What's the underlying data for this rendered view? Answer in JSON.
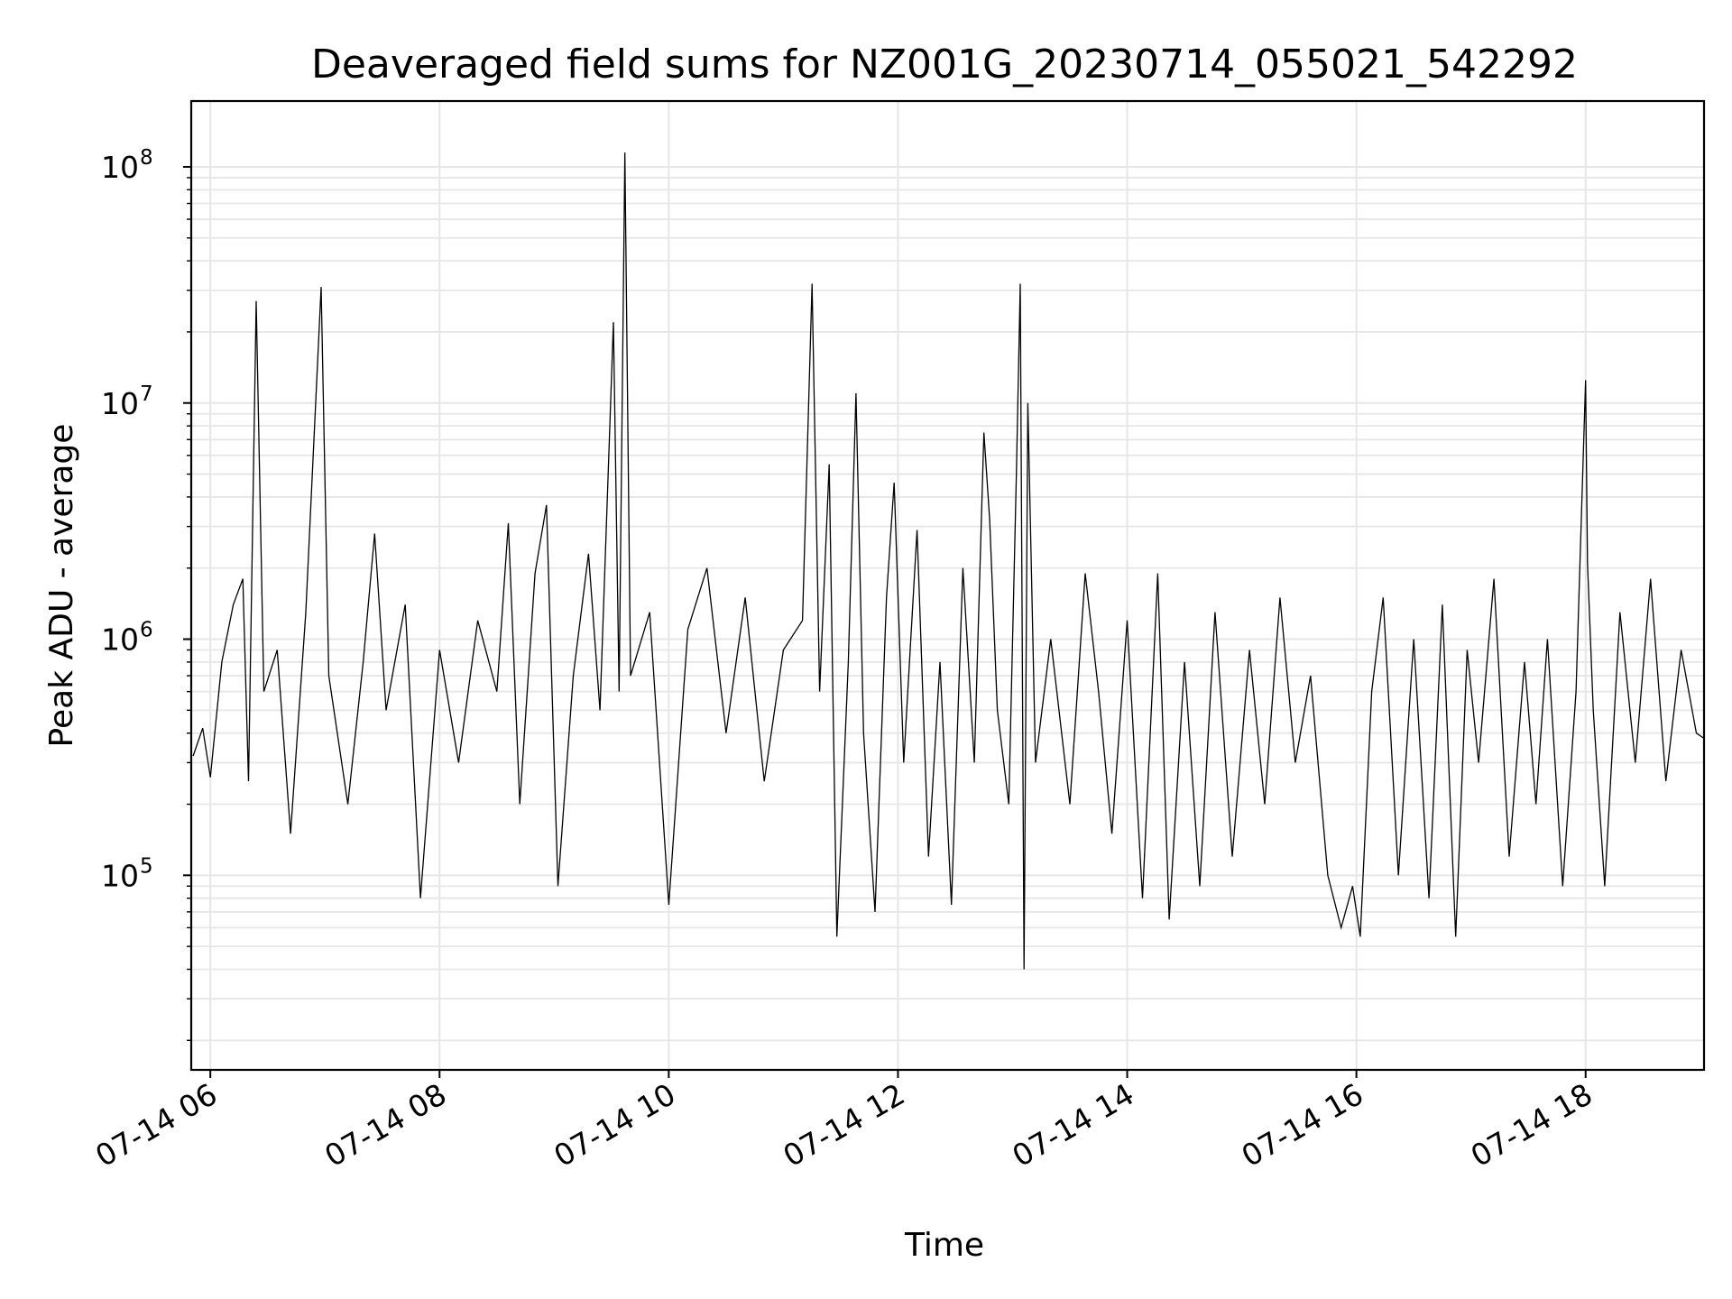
{
  "chart_data": {
    "type": "line",
    "title": "Deaveraged field sums for NZ001G_20230714_055021_542292",
    "xlabel": "Time",
    "ylabel": "Peak ADU - average",
    "x_axis": {
      "kind": "time",
      "range": [
        "2023-07-14 05:50",
        "2023-07-14 19:02"
      ],
      "ticks": [
        {
          "time": "2023-07-14 06:00",
          "label": "07-14 06"
        },
        {
          "time": "2023-07-14 08:00",
          "label": "07-14 08"
        },
        {
          "time": "2023-07-14 10:00",
          "label": "07-14 10"
        },
        {
          "time": "2023-07-14 12:00",
          "label": "07-14 12"
        },
        {
          "time": "2023-07-14 14:00",
          "label": "07-14 14"
        },
        {
          "time": "2023-07-14 16:00",
          "label": "07-14 16"
        },
        {
          "time": "2023-07-14 18:00",
          "label": "07-14 18"
        }
      ]
    },
    "y_axis": {
      "scale": "log",
      "range": [
        15000,
        190000000
      ],
      "ticks": [
        {
          "value": 100000,
          "base": "10",
          "exp": "5"
        },
        {
          "value": 1000000,
          "base": "10",
          "exp": "6"
        },
        {
          "value": 10000000,
          "base": "10",
          "exp": "7"
        },
        {
          "value": 100000000,
          "base": "10",
          "exp": "8"
        }
      ]
    },
    "grid": true,
    "series_color": "#000000",
    "grid_color": "#e6e6e6",
    "series": [
      {
        "points": [
          [
            "2023-07-14 05:51",
            320000
          ],
          [
            "2023-07-14 05:56",
            420000
          ],
          [
            "2023-07-14 06:00",
            260000
          ],
          [
            "2023-07-14 06:06",
            800000
          ],
          [
            "2023-07-14 06:12",
            1400000
          ],
          [
            "2023-07-14 06:17",
            1800000
          ],
          [
            "2023-07-14 06:20",
            250000
          ],
          [
            "2023-07-14 06:24",
            27000000
          ],
          [
            "2023-07-14 06:28",
            600000
          ],
          [
            "2023-07-14 06:35",
            900000
          ],
          [
            "2023-07-14 06:42",
            150000
          ],
          [
            "2023-07-14 06:50",
            1300000
          ],
          [
            "2023-07-14 06:58",
            31000000
          ],
          [
            "2023-07-14 07:02",
            700000
          ],
          [
            "2023-07-14 07:12",
            200000
          ],
          [
            "2023-07-14 07:20",
            800000
          ],
          [
            "2023-07-14 07:26",
            2800000
          ],
          [
            "2023-07-14 07:32",
            500000
          ],
          [
            "2023-07-14 07:42",
            1400000
          ],
          [
            "2023-07-14 07:50",
            80000
          ],
          [
            "2023-07-14 08:00",
            900000
          ],
          [
            "2023-07-14 08:10",
            300000
          ],
          [
            "2023-07-14 08:20",
            1200000
          ],
          [
            "2023-07-14 08:30",
            600000
          ],
          [
            "2023-07-14 08:36",
            3100000
          ],
          [
            "2023-07-14 08:42",
            200000
          ],
          [
            "2023-07-14 08:50",
            1900000
          ],
          [
            "2023-07-14 08:56",
            3700000
          ],
          [
            "2023-07-14 09:02",
            90000
          ],
          [
            "2023-07-14 09:10",
            700000
          ],
          [
            "2023-07-14 09:18",
            2300000
          ],
          [
            "2023-07-14 09:24",
            500000
          ],
          [
            "2023-07-14 09:31",
            22000000
          ],
          [
            "2023-07-14 09:34",
            600000
          ],
          [
            "2023-07-14 09:37",
            115000000
          ],
          [
            "2023-07-14 09:40",
            700000
          ],
          [
            "2023-07-14 09:50",
            1300000
          ],
          [
            "2023-07-14 10:00",
            75000
          ],
          [
            "2023-07-14 10:10",
            1100000
          ],
          [
            "2023-07-14 10:20",
            2000000
          ],
          [
            "2023-07-14 10:30",
            400000
          ],
          [
            "2023-07-14 10:40",
            1500000
          ],
          [
            "2023-07-14 10:50",
            250000
          ],
          [
            "2023-07-14 11:00",
            900000
          ],
          [
            "2023-07-14 11:10",
            1200000
          ],
          [
            "2023-07-14 11:15",
            32000000
          ],
          [
            "2023-07-14 11:19",
            600000
          ],
          [
            "2023-07-14 11:24",
            5500000
          ],
          [
            "2023-07-14 11:28",
            55000
          ],
          [
            "2023-07-14 11:34",
            800000
          ],
          [
            "2023-07-14 11:38",
            11000000
          ],
          [
            "2023-07-14 11:42",
            400000
          ],
          [
            "2023-07-14 11:48",
            70000
          ],
          [
            "2023-07-14 11:54",
            1500000
          ],
          [
            "2023-07-14 11:58",
            4600000
          ],
          [
            "2023-07-14 12:03",
            300000
          ],
          [
            "2023-07-14 12:10",
            2900000
          ],
          [
            "2023-07-14 12:16",
            120000
          ],
          [
            "2023-07-14 12:22",
            800000
          ],
          [
            "2023-07-14 12:28",
            75000
          ],
          [
            "2023-07-14 12:34",
            2000000
          ],
          [
            "2023-07-14 12:40",
            300000
          ],
          [
            "2023-07-14 12:45",
            7500000
          ],
          [
            "2023-07-14 12:48",
            3200000
          ],
          [
            "2023-07-14 12:52",
            500000
          ],
          [
            "2023-07-14 12:58",
            200000
          ],
          [
            "2023-07-14 13:02",
            5000000
          ],
          [
            "2023-07-14 13:04",
            32000000
          ],
          [
            "2023-07-14 13:06",
            40000
          ],
          [
            "2023-07-14 13:08",
            10000000
          ],
          [
            "2023-07-14 13:12",
            300000
          ],
          [
            "2023-07-14 13:20",
            1000000
          ],
          [
            "2023-07-14 13:30",
            200000
          ],
          [
            "2023-07-14 13:38",
            1900000
          ],
          [
            "2023-07-14 13:45",
            600000
          ],
          [
            "2023-07-14 13:52",
            150000
          ],
          [
            "2023-07-14 14:00",
            1200000
          ],
          [
            "2023-07-14 14:08",
            80000
          ],
          [
            "2023-07-14 14:16",
            1900000
          ],
          [
            "2023-07-14 14:22",
            65000
          ],
          [
            "2023-07-14 14:30",
            800000
          ],
          [
            "2023-07-14 14:38",
            90000
          ],
          [
            "2023-07-14 14:46",
            1300000
          ],
          [
            "2023-07-14 14:55",
            120000
          ],
          [
            "2023-07-14 15:04",
            900000
          ],
          [
            "2023-07-14 15:12",
            200000
          ],
          [
            "2023-07-14 15:20",
            1500000
          ],
          [
            "2023-07-14 15:28",
            300000
          ],
          [
            "2023-07-14 15:36",
            700000
          ],
          [
            "2023-07-14 15:45",
            100000
          ],
          [
            "2023-07-14 15:52",
            60000
          ],
          [
            "2023-07-14 15:58",
            90000
          ],
          [
            "2023-07-14 16:02",
            55000
          ],
          [
            "2023-07-14 16:08",
            600000
          ],
          [
            "2023-07-14 16:14",
            1500000
          ],
          [
            "2023-07-14 16:22",
            100000
          ],
          [
            "2023-07-14 16:30",
            1000000
          ],
          [
            "2023-07-14 16:38",
            80000
          ],
          [
            "2023-07-14 16:45",
            1400000
          ],
          [
            "2023-07-14 16:52",
            55000
          ],
          [
            "2023-07-14 16:58",
            900000
          ],
          [
            "2023-07-14 17:04",
            300000
          ],
          [
            "2023-07-14 17:12",
            1800000
          ],
          [
            "2023-07-14 17:20",
            120000
          ],
          [
            "2023-07-14 17:28",
            800000
          ],
          [
            "2023-07-14 17:34",
            200000
          ],
          [
            "2023-07-14 17:40",
            1000000
          ],
          [
            "2023-07-14 17:48",
            90000
          ],
          [
            "2023-07-14 17:55",
            600000
          ],
          [
            "2023-07-14 18:00",
            12500000
          ],
          [
            "2023-07-14 18:01",
            2100000
          ],
          [
            "2023-07-14 18:04",
            500000
          ],
          [
            "2023-07-14 18:10",
            90000
          ],
          [
            "2023-07-14 18:18",
            1300000
          ],
          [
            "2023-07-14 18:26",
            300000
          ],
          [
            "2023-07-14 18:34",
            1800000
          ],
          [
            "2023-07-14 18:42",
            250000
          ],
          [
            "2023-07-14 18:50",
            900000
          ],
          [
            "2023-07-14 18:58",
            400000
          ],
          [
            "2023-07-14 19:02",
            380000
          ]
        ]
      }
    ]
  }
}
